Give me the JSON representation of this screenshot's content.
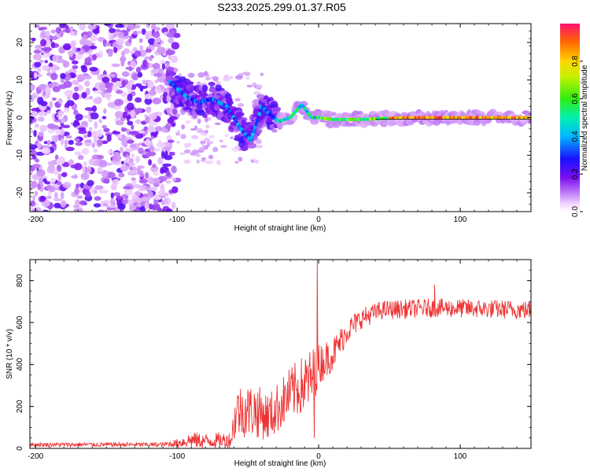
{
  "page_title": "S233.2025.299.01.37.R05",
  "chart_data": [
    {
      "type": "heatmap",
      "title": "S233.2025.299.01.37.R05",
      "xlabel": "Height of straight line (km)",
      "ylabel": "Frequency (Hz)",
      "xlim": [
        -204,
        150
      ],
      "ylim": [
        -25,
        25
      ],
      "xticks": [
        -200,
        -100,
        0,
        100
      ],
      "xtick_labels": [
        "-200",
        "-100",
        "0",
        "100"
      ],
      "yticks": [
        20,
        10,
        0,
        -10,
        -20
      ],
      "ytick_labels": [
        "20",
        "10",
        "0",
        "-10",
        "-20"
      ],
      "colorbar": {
        "label": "Normalized spectral amplitude",
        "range": [
          0,
          1
        ],
        "ticks": [
          0.0,
          0.2,
          0.4,
          0.6,
          0.8
        ],
        "tick_labels": [
          "0.0",
          "0.2",
          "0.4",
          "0.6",
          "0.8"
        ]
      },
      "frequency_track": [
        {
          "x": -105,
          "y": 9.5
        },
        {
          "x": -95,
          "y": 6
        },
        {
          "x": -85,
          "y": 4
        },
        {
          "x": -75,
          "y": 5
        },
        {
          "x": -65,
          "y": 3
        },
        {
          "x": -55,
          "y": -3
        },
        {
          "x": -48,
          "y": -6
        },
        {
          "x": -40,
          "y": 3
        },
        {
          "x": -35,
          "y": 1
        },
        {
          "x": -28,
          "y": -1
        },
        {
          "x": -20,
          "y": 0
        },
        {
          "x": -12,
          "y": 3.5
        },
        {
          "x": -5,
          "y": 0
        },
        {
          "x": 0,
          "y": 0
        },
        {
          "x": 10,
          "y": -0.5
        },
        {
          "x": 30,
          "y": -0.5
        },
        {
          "x": 60,
          "y": 0
        },
        {
          "x": 100,
          "y": 0
        },
        {
          "x": 150,
          "y": 0
        }
      ],
      "noise_region": {
        "x_from": -204,
        "x_to": -100,
        "level": 0.2
      }
    },
    {
      "type": "line",
      "xlabel": "Height of straight line (km)",
      "ylabel": "SNR (10 * v/v)",
      "xlim": [
        -204,
        150
      ],
      "ylim": [
        0,
        900
      ],
      "xticks": [
        -200,
        -100,
        0,
        100
      ],
      "xtick_labels": [
        "-200",
        "-100",
        "0",
        "100"
      ],
      "yticks": [
        0,
        200,
        400,
        600,
        800
      ],
      "ytick_labels": [
        "0",
        "200",
        "400",
        "600",
        "800"
      ],
      "color": "#ee3333",
      "series_envelope": [
        {
          "x": -204,
          "mean": 18,
          "spread": 20
        },
        {
          "x": -110,
          "mean": 18,
          "spread": 22
        },
        {
          "x": -100,
          "mean": 25,
          "spread": 40
        },
        {
          "x": -90,
          "mean": 40,
          "spread": 80
        },
        {
          "x": -80,
          "mean": 35,
          "spread": 70
        },
        {
          "x": -62,
          "mean": 40,
          "spread": 80
        },
        {
          "x": -58,
          "mean": 180,
          "spread": 260
        },
        {
          "x": -45,
          "mean": 180,
          "spread": 260
        },
        {
          "x": -35,
          "mean": 150,
          "spread": 230
        },
        {
          "x": -20,
          "mean": 260,
          "spread": 260
        },
        {
          "x": -5,
          "mean": 330,
          "spread": 300
        },
        {
          "x": 0,
          "mean": 400,
          "spread": 200
        },
        {
          "x": 10,
          "mean": 450,
          "spread": 160
        },
        {
          "x": 20,
          "mean": 560,
          "spread": 120
        },
        {
          "x": 30,
          "mean": 620,
          "spread": 100
        },
        {
          "x": 45,
          "mean": 660,
          "spread": 90
        },
        {
          "x": 80,
          "mean": 670,
          "spread": 90
        },
        {
          "x": 120,
          "mean": 665,
          "spread": 90
        },
        {
          "x": 150,
          "mean": 660,
          "spread": 90
        }
      ],
      "spikes": [
        {
          "x": -1,
          "y": 900
        },
        {
          "x": -3,
          "y": 50
        },
        {
          "x": 82,
          "y": 780
        }
      ]
    }
  ]
}
